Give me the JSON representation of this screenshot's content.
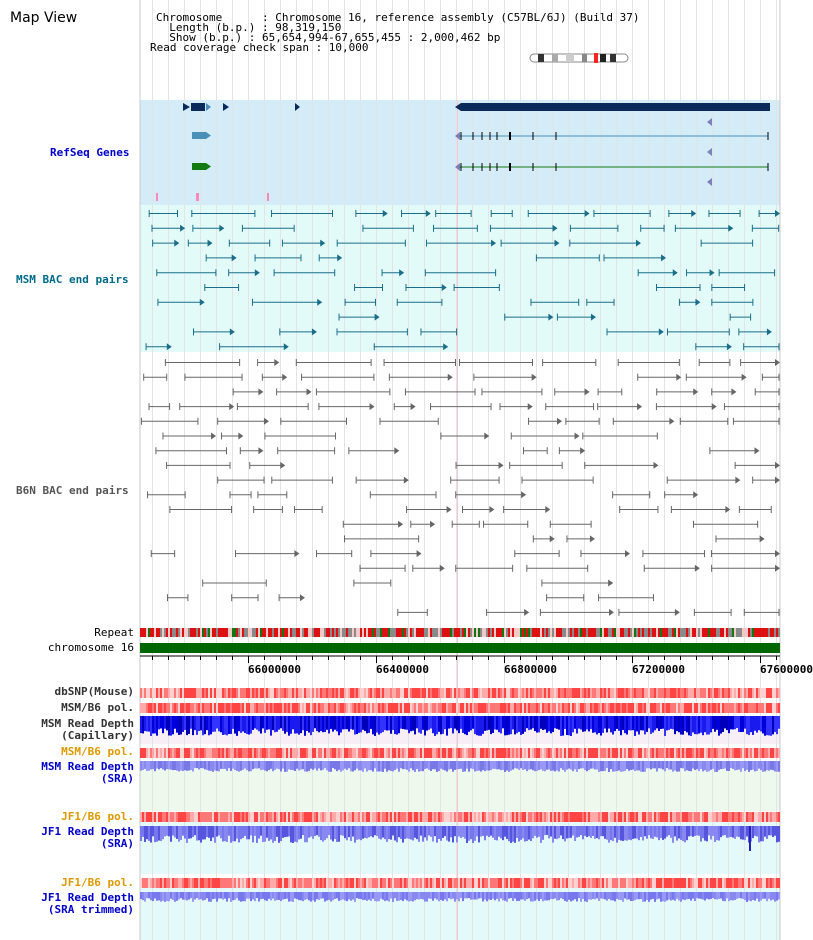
{
  "title": "Map View",
  "info": {
    "chromosome": "Chromosome      : Chromosome 16, reference assembly (C57BL/6J) (Build 37)",
    "length": "  Length (b.p.) : 98,319,150",
    "show": "  Show (b.p.) : 65,654,994-67,655,455 : 2,000,462 bp",
    "coverage": "Read coverage check span : 10,000"
  },
  "tracks": {
    "refseq": "RefSeq Genes",
    "msm_bac": "MSM BAC end pairs",
    "b6n_bac": "B6N BAC end pairs",
    "repeat": "Repeat",
    "chromosome": "chromosome 16",
    "dbsnp": "dbSNP(Mouse)",
    "msm_b6_pol_1": "MSM/B6 pol.",
    "msm_depth_cap_1": "MSM Read Depth",
    "msm_depth_cap_2": "(Capillary)",
    "msm_b6_pol_2": "MSM/B6 pol.",
    "msm_depth_sra_1": "MSM Read Depth",
    "msm_depth_sra_2": "(SRA)",
    "jf1_b6_pol_1": "JF1/B6 pol.",
    "jf1_depth_sra_1": "JF1 Read Depth",
    "jf1_depth_sra_2": "(SRA)",
    "jf1_b6_pol_2": "JF1/B6 pol.",
    "jf1_depth_trim_1": "JF1 Read Depth",
    "jf1_depth_trim_2": "(SRA trimmed)"
  },
  "axis_ticks": [
    "66000000",
    "66400000",
    "66800000",
    "67200000",
    "67600000"
  ],
  "colors": {
    "refseq_bg": "#d3ecf8",
    "msm_bg": "#e3fbf8",
    "gene_navy": "#0b2a5c",
    "gene_blue": "#4a8fb8",
    "gene_green": "#137a13",
    "msm_pair": "#1a6e8a",
    "b6n_pair": "#666666",
    "chrom_bar": "#006600",
    "label_blue": "#0000cc",
    "label_teal": "#006a88",
    "label_grey": "#555555",
    "label_orange": "#dd9900"
  }
}
